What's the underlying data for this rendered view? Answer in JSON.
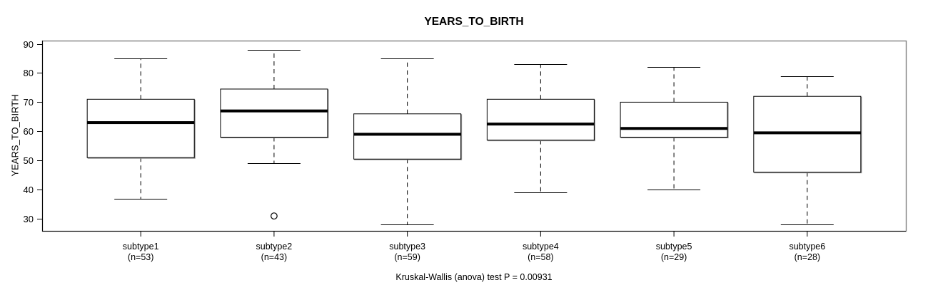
{
  "chart_data": {
    "type": "boxplot",
    "title": "YEARS_TO_BIRTH",
    "ylabel": "YEARS_TO_BIRTH",
    "caption": "Kruskal-Wallis (anova) test P = 0.00931",
    "p_value": "0.00931",
    "yticks": [
      30,
      40,
      50,
      60,
      70,
      80,
      90
    ],
    "ylim": [
      25.9,
      91.1
    ],
    "grid": false,
    "legend": "none",
    "categories": [
      "subtype1",
      "subtype2",
      "subtype3",
      "subtype4",
      "subtype5",
      "subtype6"
    ],
    "count_labels": [
      "(n=53)",
      "(n=43)",
      "(n=59)",
      "(n=58)",
      "(n=29)",
      "(n=28)"
    ],
    "series": [
      {
        "name": "subtype1",
        "n": 53,
        "whisker_low": 37,
        "q1": 51,
        "median": 63,
        "q3": 71,
        "whisker_high": 85,
        "outliers": []
      },
      {
        "name": "subtype2",
        "n": 43,
        "whisker_low": 49,
        "q1": 58,
        "median": 67,
        "q3": 74.5,
        "whisker_high": 88,
        "outliers": [
          31
        ]
      },
      {
        "name": "subtype3",
        "n": 59,
        "whisker_low": 28,
        "q1": 50.5,
        "median": 59,
        "q3": 66,
        "whisker_high": 85,
        "outliers": []
      },
      {
        "name": "subtype4",
        "n": 58,
        "whisker_low": 39,
        "q1": 57,
        "median": 62.5,
        "q3": 71,
        "whisker_high": 83,
        "outliers": []
      },
      {
        "name": "subtype5",
        "n": 29,
        "whisker_low": 40,
        "q1": 58,
        "median": 61,
        "q3": 70,
        "whisker_high": 82,
        "outliers": []
      },
      {
        "name": "subtype6",
        "n": 28,
        "whisker_low": 28,
        "q1": 46,
        "median": 59.5,
        "q3": 72,
        "whisker_high": 79,
        "outliers": []
      }
    ],
    "colors": {
      "line": "#000000",
      "frame": "#808080",
      "box_fill": "#ffffff",
      "background": "#ffffff"
    }
  }
}
